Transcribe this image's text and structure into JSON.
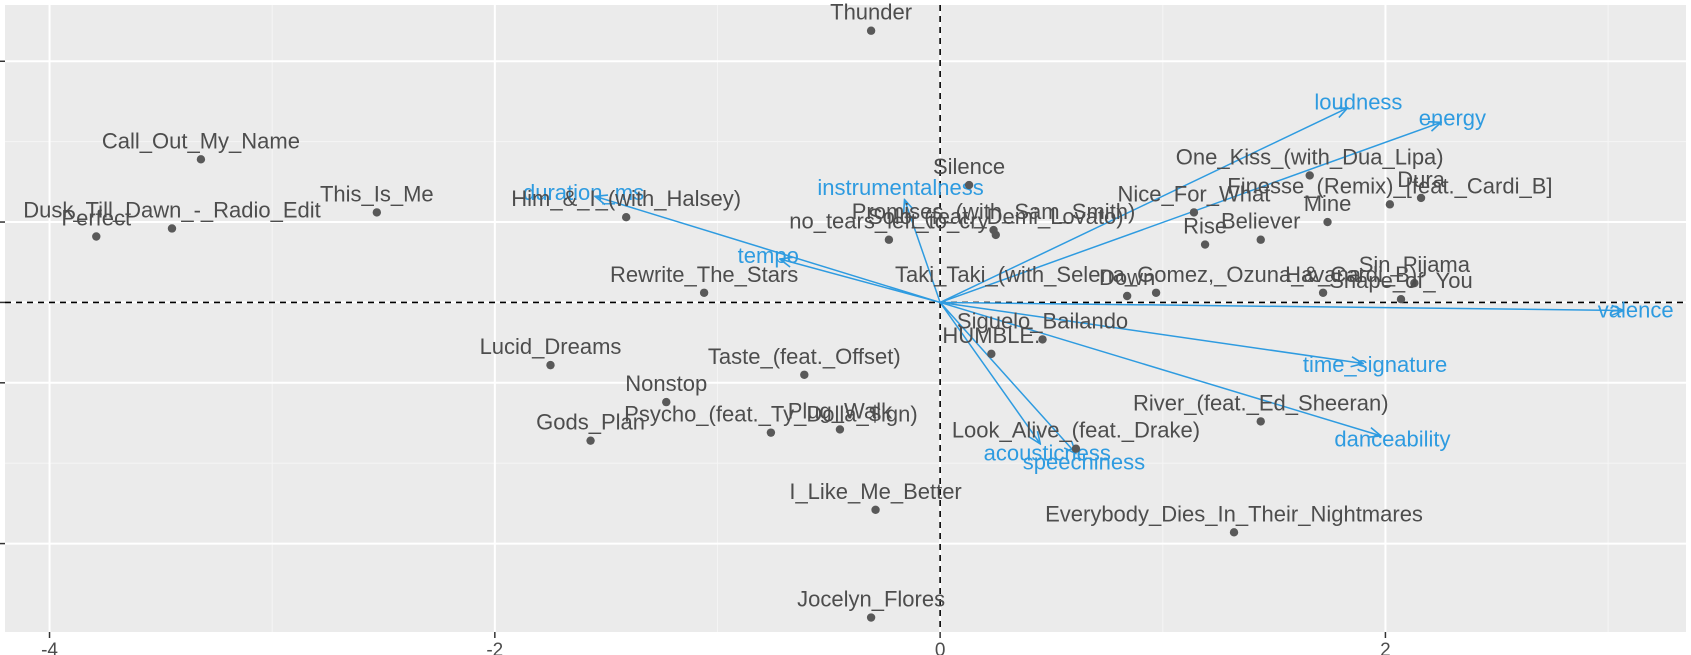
{
  "chart_data": {
    "type": "scatter",
    "title": "",
    "xlabel": "",
    "ylabel": "",
    "xlim": [
      -4.2,
      3.35
    ],
    "ylim": [
      -2.05,
      1.85
    ],
    "x_ticks": [
      {
        "value": -4,
        "label": "-4"
      },
      {
        "value": -2,
        "label": "-2"
      },
      {
        "value": 0,
        "label": "0"
      },
      {
        "value": 2,
        "label": "2"
      }
    ],
    "y_ticks": [
      -1.5,
      -0.5,
      0,
      0.5,
      1.5
    ],
    "grid": true,
    "reference_lines": {
      "x": 0,
      "y": 0,
      "style": "dashed"
    },
    "point_color": "#595959",
    "label_color": "#4d4d4d",
    "arrow_color": "#2e9be0",
    "points": [
      {
        "label": "Thunder",
        "x": -0.31,
        "y": 1.69
      },
      {
        "label": "Call_Out_My_Name",
        "x": -3.32,
        "y": 0.89
      },
      {
        "label": "Perfect",
        "x": -3.79,
        "y": 0.41
      },
      {
        "label": "Dusk_Till_Dawn_-_Radio_Edit",
        "x": -3.45,
        "y": 0.46
      },
      {
        "label": "This_Is_Me",
        "x": -2.53,
        "y": 0.56
      },
      {
        "label": "Him_&_I_(with_Halsey)",
        "x": -1.41,
        "y": 0.53
      },
      {
        "label": "Rewrite_The_Stars",
        "x": -1.06,
        "y": 0.06
      },
      {
        "label": "Silence",
        "x": 0.13,
        "y": 0.73
      },
      {
        "label": "no_tears_left_to_cry",
        "x": -0.23,
        "y": 0.39
      },
      {
        "label": "Solo_(feat._Demi_Lovato)",
        "x": 0.25,
        "y": 0.42
      },
      {
        "label": "Promises_(with_Sam_Smith)",
        "x": 0.24,
        "y": 0.45
      },
      {
        "label": "One_Kiss_(with_Dua_Lipa)",
        "x": 1.66,
        "y": 0.79
      },
      {
        "label": "Finesse_(Remix)_[feat._Cardi_B]",
        "x": 2.02,
        "y": 0.61
      },
      {
        "label": "Dura",
        "x": 2.16,
        "y": 0.65
      },
      {
        "label": "Mine",
        "x": 1.74,
        "y": 0.5
      },
      {
        "label": "Nice_For_What",
        "x": 1.14,
        "y": 0.56
      },
      {
        "label": "Rise",
        "x": 1.19,
        "y": 0.36
      },
      {
        "label": "Believer",
        "x": 1.44,
        "y": 0.39
      },
      {
        "label": "Sin_Pijama",
        "x": 2.13,
        "y": 0.12
      },
      {
        "label": "Taki_Taki_(with_Selena_Gomez,_Ozuna_&_Cardi_B)",
        "x": 0.97,
        "y": 0.06
      },
      {
        "label": "Shape_of_You",
        "x": 2.07,
        "y": 0.02
      },
      {
        "label": "Down",
        "x": 0.84,
        "y": 0.04
      },
      {
        "label": "Havana",
        "x": 1.72,
        "y": 0.06
      },
      {
        "label": "Siguelo_Bailando",
        "x": 0.46,
        "y": -0.23
      },
      {
        "label": "HUMBLE.",
        "x": 0.23,
        "y": -0.32
      },
      {
        "label": "Lucid_Dreams",
        "x": -1.75,
        "y": -0.39
      },
      {
        "label": "Taste_(feat._Offset)",
        "x": -0.61,
        "y": -0.45
      },
      {
        "label": "Nonstop",
        "x": -1.23,
        "y": -0.62
      },
      {
        "label": "Gods_Plan",
        "x": -1.57,
        "y": -0.86
      },
      {
        "label": "Psycho_(feat._Ty_Dolla_$ign)",
        "x": -0.76,
        "y": -0.81
      },
      {
        "label": "Plug_Walk",
        "x": -0.45,
        "y": -0.79
      },
      {
        "label": "Look_Alive_(feat._Drake)",
        "x": 0.61,
        "y": -0.91
      },
      {
        "label": "River_(feat._Ed_Sheeran)",
        "x": 1.44,
        "y": -0.74
      },
      {
        "label": "I_Like_Me_Better",
        "x": -0.29,
        "y": -1.29
      },
      {
        "label": "Everybody_Dies_In_Their_Nightmares",
        "x": 1.32,
        "y": -1.43
      },
      {
        "label": "Jocelyn_Flores",
        "x": -0.31,
        "y": -1.96
      }
    ],
    "vectors": [
      {
        "label": "loudness",
        "x": 1.83,
        "y": 1.21
      },
      {
        "label": "energy",
        "x": 2.25,
        "y": 1.12
      },
      {
        "label": "duration_ms",
        "x": -1.55,
        "y": 0.66
      },
      {
        "label": "instrumentalness",
        "x": -0.16,
        "y": 0.64
      },
      {
        "label": "tempo",
        "x": -0.72,
        "y": 0.27
      },
      {
        "label": "valence",
        "x": 3.07,
        "y": -0.05
      },
      {
        "label": "time_signature",
        "x": 1.9,
        "y": -0.38
      },
      {
        "label": "danceability",
        "x": 1.98,
        "y": -0.83
      },
      {
        "label": "acousticness",
        "x": 0.45,
        "y": -0.88
      },
      {
        "label": "speechiness",
        "x": 0.61,
        "y": -0.94
      }
    ]
  }
}
